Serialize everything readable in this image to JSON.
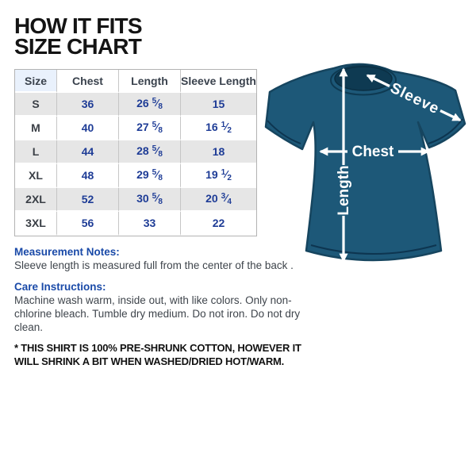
{
  "title": {
    "line1": "HOW IT FITS",
    "line2": "SIZE CHART"
  },
  "size_table": {
    "headers": [
      "Size",
      "Chest",
      "Length",
      "Sleeve Length"
    ],
    "rows": [
      {
        "size": "S",
        "chest": "36",
        "length": "26 5/8",
        "sleeve_length": "15"
      },
      {
        "size": "M",
        "chest": "40",
        "length": "27 5/8",
        "sleeve_length": "16 1/2"
      },
      {
        "size": "L",
        "chest": "44",
        "length": "28 5/8",
        "sleeve_length": "18"
      },
      {
        "size": "XL",
        "chest": "48",
        "length": "29 5/8",
        "sleeve_length": "19 1/2"
      },
      {
        "size": "2XL",
        "chest": "52",
        "length": "30 5/8",
        "sleeve_length": "20 3/4"
      },
      {
        "size": "3XL",
        "chest": "56",
        "length": "33",
        "sleeve_length": "22"
      }
    ]
  },
  "notes": {
    "measurement_heading": "Measurement Notes:",
    "measurement_body": "Sleeve length is measured full from the center of the back .",
    "care_heading": "Care Instructions:",
    "care_body": "Machine wash warm, inside out, with like colors. Only non-chlorine bleach. Tumble dry medium. Do not iron. Do not dry clean.",
    "footnote": "* THIS SHIRT IS 100% PRE-SHRUNK COTTON, HOWEVER IT WILL SHRINK A BIT WHEN WASHED/DRIED HOT/WARM."
  },
  "diagram": {
    "labels": {
      "sleeve": "Sleeve",
      "chest": "Chest",
      "length": "Length"
    },
    "shirt_color": "#1d5878",
    "collar_color": "#0e3a52",
    "seam_color": "#0d3550",
    "outline_color": "#16455f",
    "arrow_color": "#ffffff"
  },
  "colors": {
    "data_text_blue": "#1e3c96",
    "heading_blue": "#1a4aa8",
    "body_text": "#3f454c",
    "row_gray": "#e6e6e6",
    "size_header_bg": "#e9f1fc",
    "table_border": "#b3b3b3"
  }
}
